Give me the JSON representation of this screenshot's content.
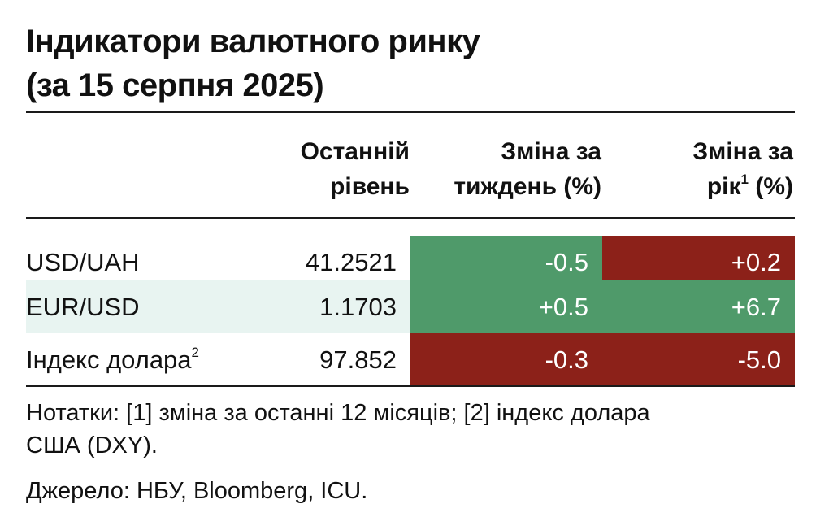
{
  "title": {
    "line1": "Індикатори валютного ринку",
    "line2": "(за 15 серпня 2025)"
  },
  "headers": {
    "level": [
      "Останній",
      "рівень"
    ],
    "week": [
      "Зміна за",
      "тиждень (%)"
    ],
    "year": [
      "Зміна за",
      "рік",
      "1",
      " (%)"
    ]
  },
  "rows": [
    {
      "name": "USD/UAH",
      "footnote": "",
      "level": "41.2521",
      "week": "-0.5",
      "year": "+0.2"
    },
    {
      "name": "EUR/USD",
      "footnote": "",
      "level": "1.1703",
      "week": "+0.5",
      "year": "+6.7"
    },
    {
      "name": "Індекс долара",
      "footnote": "2",
      "level": "97.852",
      "week": "-0.3",
      "year": "-5.0"
    }
  ],
  "cell_colors": {
    "positive_green": "#4f9a6a",
    "negative_red": "#8c2119",
    "row_shade": "#e8f4f1"
  },
  "notes": {
    "line1": "Нотатки: [1] зміна за останні 12 місяців; [2] індекс долара",
    "line2": "США (DXY).",
    "source": "Джерело: НБУ, Bloomberg, ICU."
  }
}
